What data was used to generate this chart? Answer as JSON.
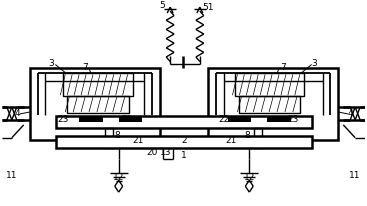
{
  "bg_color": "#ffffff",
  "line_color": "#000000",
  "lw": 1.0,
  "font_size": 6.5,
  "fig_w": 3.67,
  "fig_h": 2.07,
  "dpi": 100
}
